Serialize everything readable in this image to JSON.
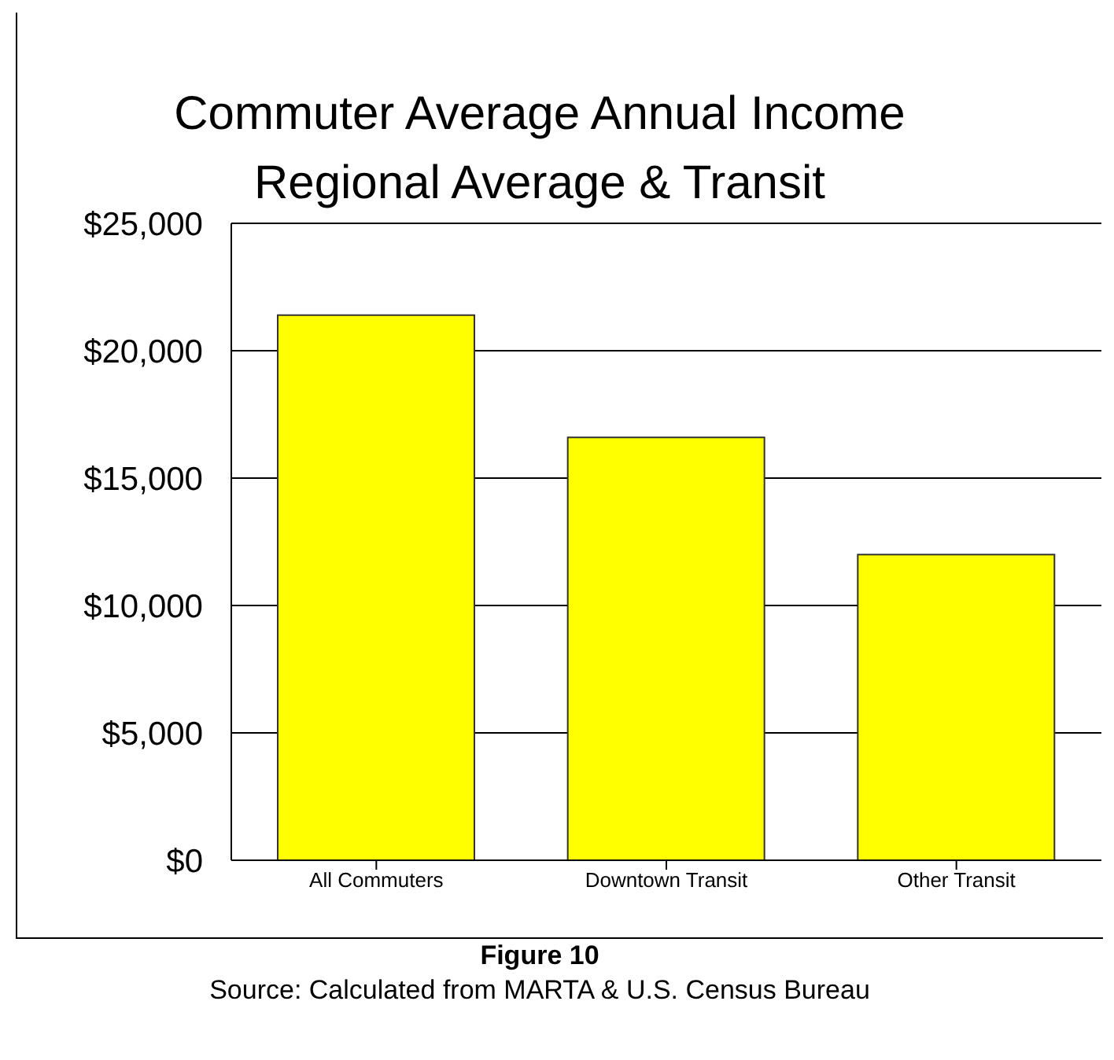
{
  "chart_data": {
    "type": "bar",
    "title": "Commuter Average Annual Income",
    "subtitle": "Regional Average & Transit",
    "categories": [
      "All Commuters",
      "Downtown Transit",
      "Other Transit"
    ],
    "values": [
      21400,
      16600,
      12000
    ],
    "color": "#ffff00",
    "ylim": [
      0,
      25000
    ],
    "yticks": [
      {
        "value": 0,
        "label": "$0"
      },
      {
        "value": 5000,
        "label": "$5,000"
      },
      {
        "value": 10000,
        "label": "$10,000"
      },
      {
        "value": 15000,
        "label": "$15,000"
      },
      {
        "value": 20000,
        "label": "$20,000"
      },
      {
        "value": 25000,
        "label": "$25,000"
      }
    ],
    "grid": "y",
    "annotations": [
      "Figure 10",
      "Source: Calculated from MARTA & U.S. Census Bureau"
    ]
  }
}
